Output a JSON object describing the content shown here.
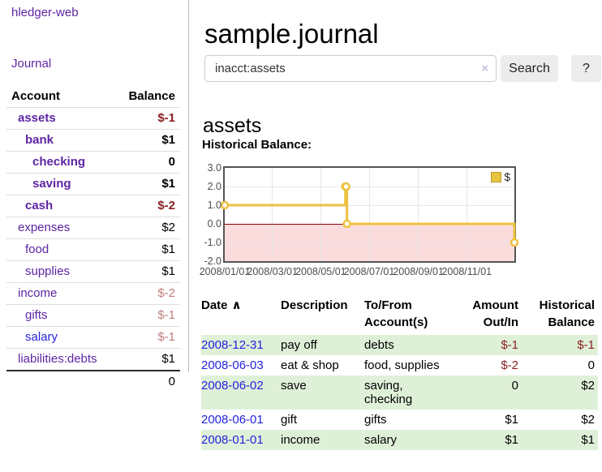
{
  "sidebar": {
    "brand": "hledger-web",
    "nav": {
      "journal": "Journal"
    },
    "accounts_table": {
      "col_account": "Account",
      "col_balance": "Balance",
      "rows": [
        {
          "account": "assets",
          "balance": "$-1",
          "depth": 1,
          "bold": true,
          "balance_style": "neg-strong"
        },
        {
          "account": "bank",
          "balance": "$1",
          "depth": 2,
          "bold": true,
          "balance_style": "pos"
        },
        {
          "account": "checking",
          "balance": "0",
          "depth": 3,
          "bold": true,
          "balance_style": "pos"
        },
        {
          "account": "saving",
          "balance": "$1",
          "depth": 3,
          "bold": true,
          "balance_style": "pos"
        },
        {
          "account": "cash",
          "balance": "$-2",
          "depth": 2,
          "bold": true,
          "balance_style": "neg-strong"
        },
        {
          "account": "expenses",
          "balance": "$2",
          "depth": 1,
          "bold": false,
          "balance_style": "pos"
        },
        {
          "account": "food",
          "balance": "$1",
          "depth": 2,
          "bold": false,
          "balance_style": "pos"
        },
        {
          "account": "supplies",
          "balance": "$1",
          "depth": 2,
          "bold": false,
          "balance_style": "pos"
        },
        {
          "account": "income",
          "balance": "$-2",
          "depth": 1,
          "bold": false,
          "balance_style": "neg-muted"
        },
        {
          "account": "gifts",
          "balance": "$-1",
          "depth": 2,
          "bold": false,
          "balance_style": "neg-muted"
        },
        {
          "account": "salary",
          "balance": "$-1",
          "depth": 2,
          "bold": false,
          "balance_style": "neg-muted",
          "link_style": "blue"
        },
        {
          "account": "liabilities:debts",
          "balance": "$1",
          "depth": 1,
          "bold": false,
          "balance_style": "pos"
        }
      ],
      "total": "0"
    }
  },
  "main": {
    "title": "sample.journal",
    "search": {
      "value": "inacct:assets",
      "clear_icon": "×",
      "search_button": "Search",
      "help_button": "?"
    },
    "account_heading": "assets",
    "chart_heading": "Historical Balance:"
  },
  "chart_data": {
    "type": "line",
    "step": true,
    "title": "Historical Balance",
    "series": [
      {
        "name": "$",
        "color": "#edc240",
        "points": [
          {
            "date": "2008-01-01",
            "value": 1
          },
          {
            "date": "2008-06-01",
            "value": 2
          },
          {
            "date": "2008-06-02",
            "value": 2
          },
          {
            "date": "2008-06-03",
            "value": 0
          },
          {
            "date": "2008-12-31",
            "value": -1
          }
        ]
      }
    ],
    "xlim": [
      "2008-01-01",
      "2008-12-31"
    ],
    "ylim": [
      -2,
      3
    ],
    "yticks": [
      {
        "value": 3,
        "label": "3.0"
      },
      {
        "value": 2,
        "label": "2.0"
      },
      {
        "value": 1,
        "label": "1.0"
      },
      {
        "value": 0,
        "label": "0.0"
      },
      {
        "value": -1,
        "label": "-1.0"
      },
      {
        "value": -2,
        "label": "-2.0"
      }
    ],
    "xticks": [
      {
        "date": "2008-01-01",
        "label": "2008/01/01"
      },
      {
        "date": "2008-03-01",
        "label": "2008/03/01"
      },
      {
        "date": "2008-05-01",
        "label": "2008/05/01"
      },
      {
        "date": "2008-07-01",
        "label": "2008/07/01"
      },
      {
        "date": "2008-09-01",
        "label": "2008/09/01"
      },
      {
        "date": "2008-11-01",
        "label": "2008/11/01"
      }
    ],
    "legend": {
      "label": "$",
      "swatch_color": "#e8c33f",
      "position": "top-right"
    },
    "grid": true,
    "colors": {
      "grid": "#e7e7e7",
      "border": "#545454",
      "zero_line": "#8b0000",
      "negative_region": "#fbdcdc",
      "marker_fill": "#ffffff"
    }
  },
  "register": {
    "header": {
      "date": "Date",
      "sort_indicator": "∧",
      "description": "Description",
      "account": "To/From\nAccount(s)",
      "amount": "Amount\nOut/In",
      "balance": "Historical\nBalance"
    },
    "rows": [
      {
        "date": "2008-12-31",
        "description": "pay off",
        "accounts": "debts",
        "amount": "$-1",
        "amount_neg": true,
        "balance": "$-1",
        "balance_neg": true
      },
      {
        "date": "2008-06-03",
        "description": "eat & shop",
        "accounts": "food, supplies",
        "amount": "$-2",
        "amount_neg": true,
        "balance": "0",
        "balance_neg": false
      },
      {
        "date": "2008-06-02",
        "description": "save",
        "accounts": "saving,\nchecking",
        "amount": "0",
        "amount_neg": false,
        "balance": "$2",
        "balance_neg": false
      },
      {
        "date": "2008-06-01",
        "description": "gift",
        "accounts": "gifts",
        "amount": "$1",
        "amount_neg": false,
        "balance": "$2",
        "balance_neg": false
      },
      {
        "date": "2008-01-01",
        "description": "income",
        "accounts": "salary",
        "amount": "$1",
        "amount_neg": false,
        "balance": "$1",
        "balance_neg": false
      }
    ]
  },
  "colors": {
    "accent_purple": "#5d25a3",
    "link_blue": "#2222dd",
    "negative_strong": "#8b1f1f",
    "negative_muted": "#c17d7d",
    "row_green": "#dff0d8",
    "series_gold": "#edc240"
  }
}
